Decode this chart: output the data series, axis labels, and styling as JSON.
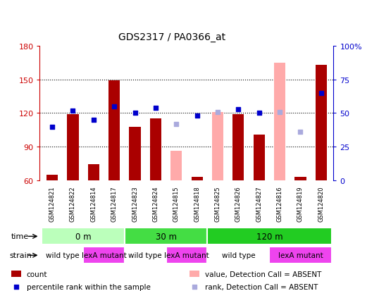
{
  "title": "GDS2317 / PA0366_at",
  "samples": [
    "GSM124821",
    "GSM124822",
    "GSM124814",
    "GSM124817",
    "GSM124823",
    "GSM124824",
    "GSM124815",
    "GSM124818",
    "GSM124825",
    "GSM124826",
    "GSM124827",
    "GSM124816",
    "GSM124819",
    "GSM124820"
  ],
  "count_values": [
    65,
    119,
    74,
    149,
    108,
    115,
    null,
    63,
    null,
    119,
    101,
    null,
    63,
    163
  ],
  "count_absent": [
    null,
    null,
    null,
    null,
    null,
    null,
    86,
    null,
    121,
    null,
    null,
    165,
    null,
    null
  ],
  "percentile_values": [
    40,
    52,
    45,
    55,
    50,
    54,
    null,
    48,
    null,
    53,
    50,
    null,
    null,
    65
  ],
  "percentile_absent": [
    null,
    null,
    null,
    null,
    null,
    null,
    42,
    null,
    51,
    null,
    null,
    51,
    36,
    null
  ],
  "ylim_left": [
    60,
    180
  ],
  "ylim_right": [
    0,
    100
  ],
  "yticks_left": [
    60,
    90,
    120,
    150,
    180
  ],
  "yticks_right": [
    0,
    25,
    50,
    75,
    100
  ],
  "time_groups": [
    {
      "label": "0 m",
      "start": 0,
      "end": 4,
      "color": "#bbffbb"
    },
    {
      "label": "30 m",
      "start": 4,
      "end": 8,
      "color": "#44dd44"
    },
    {
      "label": "120 m",
      "start": 8,
      "end": 14,
      "color": "#22cc22"
    }
  ],
  "strain_groups": [
    {
      "label": "wild type",
      "start": 0,
      "end": 2,
      "color": "#ffffff"
    },
    {
      "label": "lexA mutant",
      "start": 2,
      "end": 4,
      "color": "#ee44ee"
    },
    {
      "label": "wild type",
      "start": 4,
      "end": 6,
      "color": "#ffffff"
    },
    {
      "label": "lexA mutant",
      "start": 6,
      "end": 8,
      "color": "#ee44ee"
    },
    {
      "label": "wild type",
      "start": 8,
      "end": 11,
      "color": "#ffffff"
    },
    {
      "label": "lexA mutant",
      "start": 11,
      "end": 14,
      "color": "#ee44ee"
    }
  ],
  "bar_width": 0.55,
  "bar_color_count": "#aa0000",
  "bar_color_absent": "#ffaaaa",
  "dot_color_present": "#0000cc",
  "dot_color_absent": "#aaaadd",
  "bg_color": "#cccccc",
  "cell_border_color": "#ffffff",
  "left_axis_color": "#cc0000",
  "right_axis_color": "#0000cc",
  "legend_items": [
    {
      "type": "rect",
      "color": "#aa0000",
      "label": "count"
    },
    {
      "type": "square",
      "color": "#0000cc",
      "label": "percentile rank within the sample"
    },
    {
      "type": "rect",
      "color": "#ffaaaa",
      "label": "value, Detection Call = ABSENT"
    },
    {
      "type": "square",
      "color": "#aaaadd",
      "label": "rank, Detection Call = ABSENT"
    }
  ]
}
